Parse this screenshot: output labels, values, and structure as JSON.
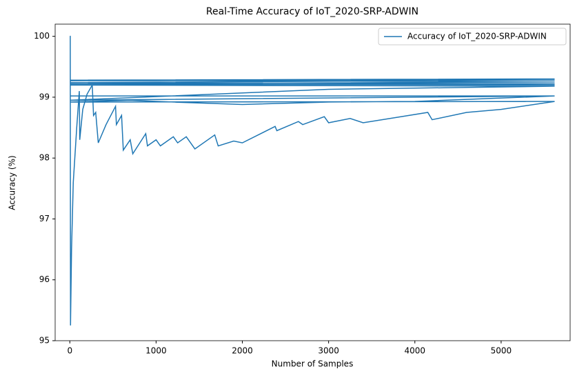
{
  "chart_data": {
    "type": "line",
    "title": "Real-Time Accuracy of IoT_2020-SRP-ADWIN",
    "x_label": "Number of Samples",
    "y_label": "Accuracy (%)",
    "x": [
      0,
      5,
      8,
      20,
      40,
      80,
      110,
      115,
      150,
      200,
      260,
      275,
      300,
      330,
      420,
      530,
      540,
      600,
      620,
      700,
      730,
      880,
      900,
      1000,
      1050,
      1200,
      1250,
      1350,
      1450,
      1680,
      1720,
      1900,
      2000,
      2380,
      2400,
      2650,
      2700,
      2950,
      3000,
      3250,
      3400,
      3800,
      4150,
      4200,
      4600,
      5000,
      5620,
      0,
      700,
      1200,
      2000,
      3000,
      4000,
      5620,
      0,
      5620,
      0,
      3000,
      5620,
      0,
      5620,
      0,
      5620,
      0,
      5620,
      0,
      5620,
      0,
      5620
    ],
    "series": [
      {
        "name": "Accuracy of IoT_2020-SRP-ADWIN",
        "color": "#1f77b4",
        "values": [
          100,
          100,
          95.25,
          96.5,
          97.6,
          98.5,
          99.1,
          98.3,
          98.8,
          99.05,
          99.2,
          98.7,
          98.75,
          98.25,
          98.55,
          98.85,
          98.55,
          98.7,
          98.13,
          98.3,
          98.07,
          98.4,
          98.2,
          98.3,
          98.2,
          98.35,
          98.25,
          98.35,
          98.15,
          98.38,
          98.2,
          98.28,
          98.25,
          98.52,
          98.45,
          98.6,
          98.55,
          98.68,
          98.58,
          98.65,
          98.58,
          98.67,
          98.75,
          98.63,
          98.75,
          98.8,
          98.93,
          98.92,
          98.95,
          98.92,
          98.88,
          98.92,
          98.93,
          99.02,
          99.02,
          99.02,
          98.95,
          99.13,
          99.18,
          99.2,
          99.22,
          99.24,
          99.28,
          99.27,
          99.3,
          99.28,
          99.25,
          99.22,
          99.2
        ]
      }
    ],
    "xlim": [
      -170,
      5800
    ],
    "ylim": [
      95,
      100.2
    ],
    "xticks": [
      0,
      1000,
      2000,
      3000,
      4000,
      5000
    ],
    "yticks": [
      95,
      96,
      97,
      98,
      99,
      100
    ],
    "legend": "upper right"
  }
}
